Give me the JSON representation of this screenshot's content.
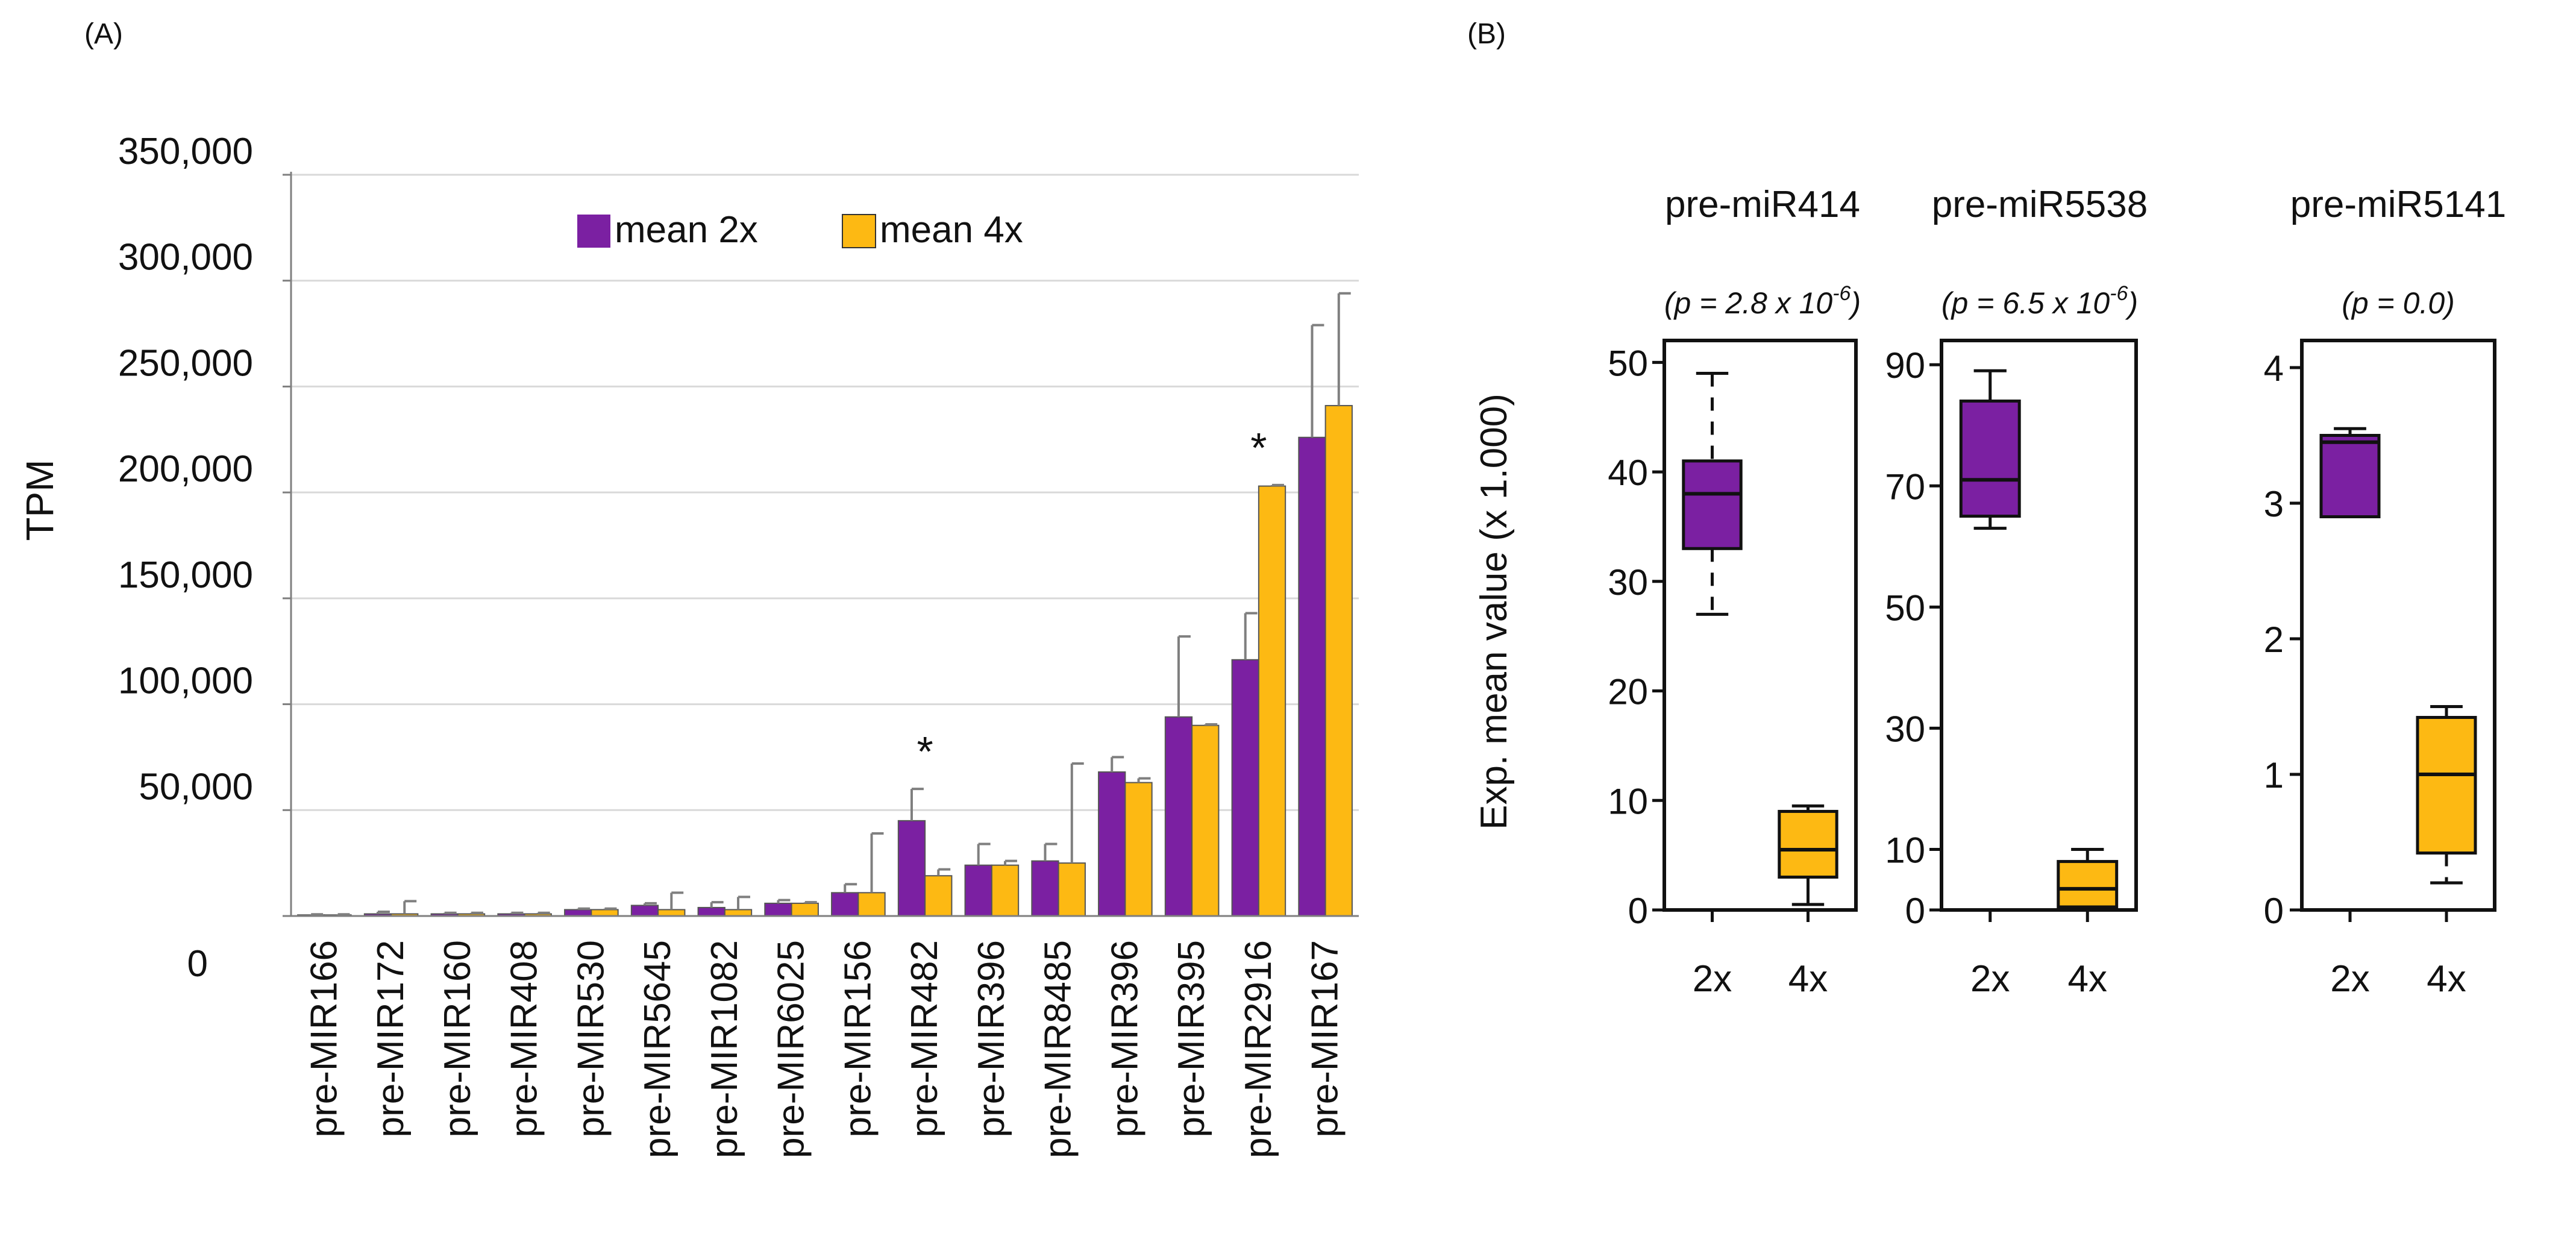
{
  "colors": {
    "purple": "#7B20A2",
    "orange": "#FDB913",
    "grid": "#D9D9D9",
    "axis": "#7F7F7F",
    "black": "#111111",
    "err": "#7F7F7F"
  },
  "chart_data": [
    {
      "type": "bar",
      "panel_label": "(A)",
      "ylabel": "TPM",
      "ylim": [
        0,
        350000
      ],
      "y_ticks": [
        0,
        50000,
        100000,
        150000,
        200000,
        250000,
        300000,
        350000
      ],
      "y_tick_labels": [
        "0",
        "50,000",
        "100,000",
        "150,000",
        "200,000",
        "250,000",
        "300,000",
        "350,000"
      ],
      "grid": true,
      "legend_position": "top-center",
      "categories": [
        "pre-MIR166",
        "pre-MIR172",
        "pre-MIR160",
        "pre-MIR408",
        "pre-MIR530",
        "pre-MIR5645",
        "pre-MIR1082",
        "pre-MIR6025",
        "pre-MIR156",
        "pre-MIR482",
        "pre-MIR396",
        "pre-MIR8485",
        "pre-MIR396",
        "pre-MIR395",
        "pre-MIR2916",
        "pre-MIR167"
      ],
      "series": [
        {
          "name": "mean 2x",
          "color": "purple",
          "values": [
            500,
            1000,
            1000,
            1000,
            3000,
            5000,
            4000,
            6000,
            11000,
            45000,
            24000,
            26000,
            68000,
            94000,
            121000,
            226000
          ],
          "errors": [
            300,
            1000,
            500,
            500,
            500,
            1000,
            2500,
            1500,
            4000,
            15000,
            10000,
            8000,
            7000,
            38000,
            22000,
            53000
          ]
        },
        {
          "name": "mean 4x",
          "color": "orange",
          "values": [
            500,
            1000,
            1000,
            1000,
            3000,
            3000,
            3000,
            6000,
            11000,
            19000,
            24000,
            25000,
            63000,
            90000,
            203000,
            241000
          ],
          "errors": [
            300,
            6000,
            500,
            500,
            500,
            8000,
            6000,
            500,
            28000,
            3000,
            2000,
            47000,
            2000,
            500,
            500,
            53000
          ]
        }
      ],
      "annotations": [
        {
          "category_index": 9,
          "text": "*"
        },
        {
          "category_index": 14,
          "text": "*"
        }
      ]
    },
    {
      "type": "box",
      "panel_label": "(B)",
      "ylabel": "Exp. mean value (x 1.000)",
      "panels": [
        {
          "title": "pre-miR414",
          "pvalue_prefix": "(p = 2.8 x 10",
          "pvalue_exp": "-6",
          "pvalue_suffix": ")",
          "ylim": [
            0,
            52
          ],
          "y_ticks": [
            0,
            10,
            20,
            30,
            40,
            50
          ],
          "y_tick_labels": [
            "0",
            "10",
            "20",
            "30",
            "40",
            "50"
          ],
          "categories": [
            "2x",
            "4x"
          ],
          "boxes": [
            {
              "name": "2x",
              "color": "purple",
              "min": 27,
              "q1": 33,
              "median": 38,
              "q3": 41,
              "max": 49,
              "whisker_style": "dashed"
            },
            {
              "name": "4x",
              "color": "orange",
              "min": 0.5,
              "q1": 3,
              "median": 5.5,
              "q3": 9,
              "max": 9.5,
              "whisker_style": "solid"
            }
          ]
        },
        {
          "title": "pre-miR5538",
          "pvalue_prefix": "(p = 6.5 x 10",
          "pvalue_exp": "-6",
          "pvalue_suffix": ")",
          "ylim": [
            0,
            94
          ],
          "y_ticks": [
            0,
            10,
            30,
            50,
            70,
            90
          ],
          "y_tick_labels": [
            "0",
            "10",
            "30",
            "50",
            "70",
            "90"
          ],
          "categories": [
            "2x",
            "4x"
          ],
          "boxes": [
            {
              "name": "2x",
              "color": "purple",
              "min": 63,
              "q1": 65,
              "median": 71,
              "q3": 84,
              "max": 89,
              "whisker_style": "solid"
            },
            {
              "name": "4x",
              "color": "orange",
              "min": 0,
              "q1": 0.5,
              "median": 3.5,
              "q3": 8,
              "max": 10,
              "whisker_style": "solid"
            }
          ]
        },
        {
          "title": "pre-miR5141",
          "pvalue_prefix": "(p = 0.0)",
          "pvalue_exp": "",
          "pvalue_suffix": "",
          "ylim": [
            0,
            4.2
          ],
          "y_ticks": [
            0,
            1,
            2,
            3,
            4
          ],
          "y_tick_labels": [
            "0",
            "1",
            "2",
            "3",
            "4"
          ],
          "categories": [
            "2x",
            "4x"
          ],
          "boxes": [
            {
              "name": "2x",
              "color": "purple",
              "min": 2.9,
              "q1": 2.9,
              "median": 3.45,
              "q3": 3.5,
              "max": 3.55,
              "whisker_style": "solid"
            },
            {
              "name": "4x",
              "color": "orange",
              "min": 0.2,
              "q1": 0.42,
              "median": 1.0,
              "q3": 1.42,
              "max": 1.5,
              "whisker_style": "dashed"
            }
          ]
        }
      ]
    }
  ]
}
